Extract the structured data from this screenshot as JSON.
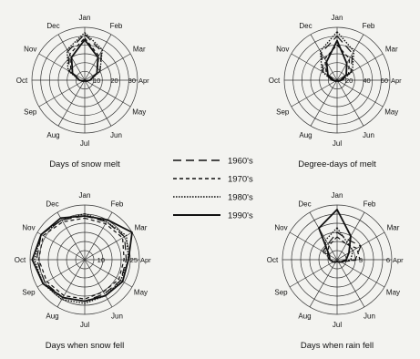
{
  "legend": {
    "entries": [
      {
        "label": "1960's",
        "dash": "9,5",
        "width": 1.2
      },
      {
        "label": "1970's",
        "dash": "4,3",
        "width": 1.2
      },
      {
        "label": "1980's",
        "dash": "1.6,1.4",
        "width": 1.3
      },
      {
        "label": "1990's",
        "dash": "",
        "width": 1.8
      }
    ]
  },
  "chart_data": [
    {
      "type": "radar",
      "title": "Days of snow melt",
      "months": [
        "Jan",
        "Feb",
        "Mar",
        "Apr",
        "May",
        "Jun",
        "Jul",
        "Aug",
        "Sep",
        "Oct",
        "Nov",
        "Dec"
      ],
      "rmax": 30,
      "ticks": [
        {
          "value": 10,
          "label": "10"
        },
        {
          "value": 20,
          "label": "20"
        },
        {
          "value": 30,
          "label": "30"
        }
      ],
      "series": [
        {
          "values": [
            26,
            19,
            10,
            3,
            1,
            0.5,
            0,
            0.5,
            1,
            3,
            10,
            19
          ]
        },
        {
          "values": [
            24,
            16,
            8,
            3,
            1,
            0.5,
            0,
            0.5,
            1,
            3,
            9,
            17
          ]
        },
        {
          "values": [
            27,
            20,
            10,
            3,
            1,
            0.5,
            0,
            0.5,
            1,
            3,
            11,
            20
          ]
        },
        {
          "values": [
            23,
            15,
            8,
            3,
            1,
            0.5,
            0,
            0.5,
            1,
            3,
            8,
            15
          ]
        }
      ]
    },
    {
      "type": "radar",
      "title": "Degree-days of melt",
      "months": [
        "Jan",
        "Feb",
        "Mar",
        "Apr",
        "May",
        "Jun",
        "Jul",
        "Aug",
        "Sep",
        "Oct",
        "Nov",
        "Dec"
      ],
      "rmax": 60,
      "ticks": [
        {
          "value": 20,
          "label": "20"
        },
        {
          "value": 40,
          "label": "40"
        },
        {
          "value": 60,
          "label": "60"
        }
      ],
      "series": [
        {
          "values": [
            50,
            35,
            18,
            6,
            2,
            1,
            0,
            1,
            2,
            6,
            18,
            36
          ]
        },
        {
          "values": [
            40,
            28,
            15,
            5,
            2,
            1,
            0,
            1,
            2,
            5,
            14,
            28
          ]
        },
        {
          "values": [
            55,
            38,
            20,
            6,
            2,
            1,
            0,
            1,
            2,
            6,
            20,
            38
          ]
        },
        {
          "values": [
            45,
            22,
            12,
            4,
            2,
            1,
            0,
            1,
            2,
            4,
            12,
            24
          ]
        }
      ]
    },
    {
      "type": "radar",
      "title": "Days when snow fell",
      "months": [
        "Jan",
        "Feb",
        "Mar",
        "Apr",
        "May",
        "Jun",
        "Jul",
        "Aug",
        "Sep",
        "Oct",
        "Nov",
        "Dec"
      ],
      "rmax": 25,
      "ticks": [
        {
          "value": 10,
          "label": "10"
        },
        {
          "value": 25,
          "label": "25"
        }
      ],
      "series": [
        {
          "values": [
            20,
            20,
            21,
            19,
            19,
            18,
            19,
            20,
            21,
            22,
            23,
            21
          ]
        },
        {
          "values": [
            19,
            19,
            20,
            18,
            18,
            17,
            18,
            19,
            20,
            21,
            22,
            20
          ]
        },
        {
          "values": [
            21,
            20,
            22,
            20,
            19,
            19,
            20,
            21,
            22,
            23,
            23,
            21
          ]
        },
        {
          "values": [
            20,
            21,
            25,
            20,
            20,
            19,
            19,
            20,
            22,
            24,
            23,
            22
          ]
        }
      ]
    },
    {
      "type": "radar",
      "title": "Days when rain fell",
      "months": [
        "Jan",
        "Feb",
        "Mar",
        "Apr",
        "May",
        "Jun",
        "Jul",
        "Aug",
        "Sep",
        "Oct",
        "Nov",
        "Dec"
      ],
      "rmax": 6,
      "ticks": [
        {
          "value": 3,
          "label": "3"
        },
        {
          "value": 6,
          "label": "6"
        }
      ],
      "series": [
        {
          "values": [
            3,
            2.5,
            3,
            2,
            0.5,
            0.3,
            0.2,
            0.3,
            0.5,
            0.8,
            1.8,
            2
          ]
        },
        {
          "values": [
            2.5,
            2,
            2.5,
            2.5,
            0.5,
            0.3,
            0.2,
            0.3,
            0.5,
            0.8,
            1.2,
            1.8
          ]
        },
        {
          "values": [
            3.5,
            2.2,
            2,
            1.5,
            0.5,
            0.3,
            0.2,
            0.3,
            0.5,
            0.8,
            1.5,
            2.5
          ]
        },
        {
          "values": [
            5.5,
            3,
            1.5,
            1,
            0.5,
            0.3,
            0.2,
            0.3,
            0.5,
            0.8,
            1,
            4
          ]
        }
      ]
    }
  ]
}
